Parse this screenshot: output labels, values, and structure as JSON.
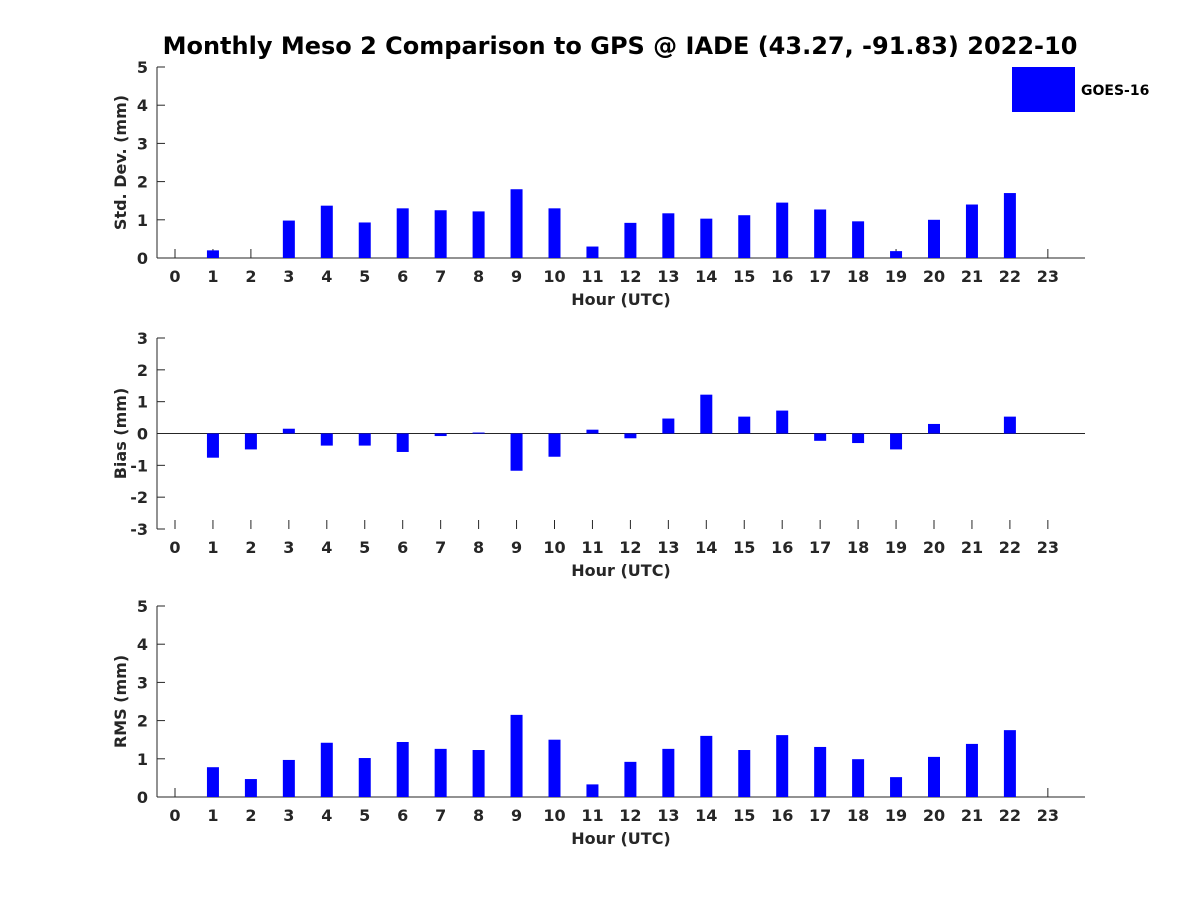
{
  "chart_data": {
    "type": "bar",
    "title": "Monthly Meso 2 Comparison to GPS @ IADE (43.27, -91.83) 2022-10",
    "colors": {
      "bar": "#0000ff",
      "axis": "#262626"
    },
    "legend": {
      "label": "GOES-16",
      "placement": "top-right"
    },
    "panels": [
      {
        "name": "std-dev",
        "ylabel": "Std. Dev. (mm)",
        "xlabel": "Hour (UTC)",
        "ylim": [
          0,
          5
        ],
        "yticks": [
          "0",
          "1",
          "2",
          "3",
          "4",
          "5"
        ],
        "categories": [
          "0",
          "1",
          "2",
          "3",
          "4",
          "5",
          "6",
          "7",
          "8",
          "9",
          "10",
          "11",
          "12",
          "13",
          "14",
          "15",
          "16",
          "17",
          "18",
          "19",
          "20",
          "21",
          "22",
          "23"
        ],
        "values": [
          null,
          0.2,
          null,
          0.98,
          1.37,
          0.93,
          1.3,
          1.25,
          1.22,
          1.8,
          1.3,
          0.3,
          0.92,
          1.17,
          1.03,
          1.12,
          1.45,
          1.27,
          0.96,
          0.18,
          1.0,
          1.4,
          1.7,
          null
        ]
      },
      {
        "name": "bias",
        "ylabel": "Bias (mm)",
        "xlabel": "Hour (UTC)",
        "ylim": [
          -3,
          3
        ],
        "yticks": [
          "-3",
          "-2",
          "-1",
          "0",
          "1",
          "2",
          "3"
        ],
        "categories": [
          "0",
          "1",
          "2",
          "3",
          "4",
          "5",
          "6",
          "7",
          "8",
          "9",
          "10",
          "11",
          "12",
          "13",
          "14",
          "15",
          "16",
          "17",
          "18",
          "19",
          "20",
          "21",
          "22",
          "23"
        ],
        "values": [
          null,
          -0.76,
          -0.5,
          0.15,
          -0.38,
          -0.38,
          -0.58,
          -0.08,
          0.03,
          -1.17,
          -0.73,
          0.12,
          -0.15,
          0.47,
          1.22,
          0.53,
          0.72,
          -0.23,
          -0.3,
          -0.5,
          0.3,
          null,
          0.53,
          null
        ]
      },
      {
        "name": "rms",
        "ylabel": "RMS (mm)",
        "xlabel": "Hour (UTC)",
        "ylim": [
          0,
          5
        ],
        "yticks": [
          "0",
          "1",
          "2",
          "3",
          "4",
          "5"
        ],
        "categories": [
          "0",
          "1",
          "2",
          "3",
          "4",
          "5",
          "6",
          "7",
          "8",
          "9",
          "10",
          "11",
          "12",
          "13",
          "14",
          "15",
          "16",
          "17",
          "18",
          "19",
          "20",
          "21",
          "22",
          "23"
        ],
        "values": [
          null,
          0.78,
          0.47,
          0.97,
          1.42,
          1.02,
          1.44,
          1.26,
          1.23,
          2.15,
          1.5,
          0.33,
          0.92,
          1.26,
          1.6,
          1.23,
          1.62,
          1.31,
          0.99,
          0.52,
          1.05,
          1.39,
          1.75,
          null
        ]
      }
    ]
  }
}
